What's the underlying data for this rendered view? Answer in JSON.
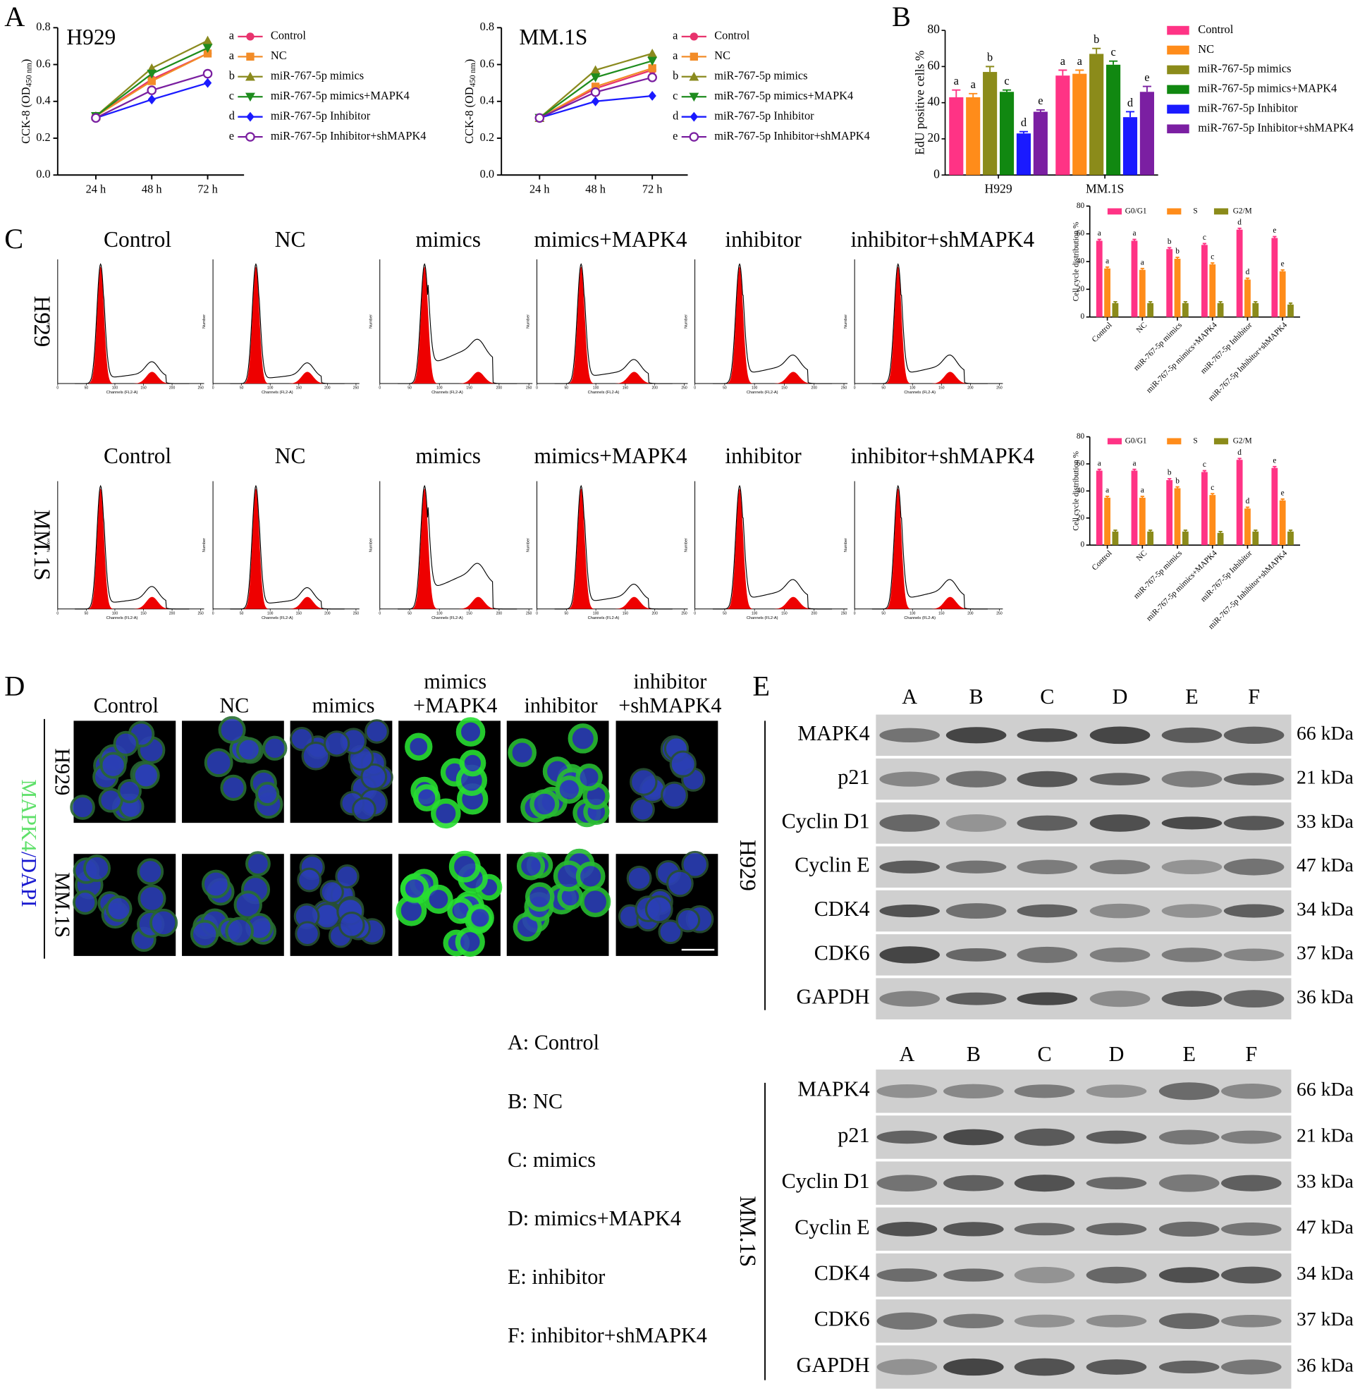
{
  "panel_labels": [
    "A",
    "B",
    "C",
    "D",
    "E"
  ],
  "chart_data": [
    {
      "type": "line",
      "title": "H929",
      "y_label": {
        "text": "CCK-8 (OD",
        "subscript": "450 nm",
        "suffix": ")"
      },
      "categories": [
        "24 h",
        "48 h",
        "72 h"
      ],
      "ylim": [
        0,
        0.8
      ],
      "yticks": [
        {
          "value": 0,
          "label": "0.0"
        },
        0.2,
        0.4,
        0.6,
        0.8
      ],
      "series": [
        {
          "name": "Control",
          "letter": "a",
          "color": "#e8336d",
          "marker": "circle",
          "values": [
            0.32,
            0.52,
            0.66
          ]
        },
        {
          "name": "NC",
          "letter": "a",
          "color": "#f28c28",
          "marker": "square",
          "values": [
            0.32,
            0.51,
            0.66
          ]
        },
        {
          "name": "miR-767-5p mimics",
          "letter": "b",
          "color": "#8a8a1e",
          "marker": "triangle",
          "values": [
            0.32,
            0.58,
            0.73
          ]
        },
        {
          "name": "miR-767-5p mimics+MAPK4",
          "letter": "c",
          "color": "#1e8c1e",
          "marker": "triangle-down",
          "values": [
            0.32,
            0.55,
            0.69
          ]
        },
        {
          "name": "miR-767-5p Inhibitor",
          "letter": "d",
          "color": "#1a1aff",
          "marker": "diamond",
          "values": [
            0.31,
            0.41,
            0.5
          ]
        },
        {
          "name": "miR-767-5p Inhibitor+shMAPK4",
          "letter": "e",
          "color": "#7a1fa0",
          "marker": "open-circle",
          "values": [
            0.31,
            0.46,
            0.55
          ]
        }
      ]
    },
    {
      "type": "line",
      "title": "MM.1S",
      "y_label": {
        "text": "CCK-8 (OD",
        "subscript": "450 nm",
        "suffix": ")"
      },
      "categories": [
        "24 h",
        "48 h",
        "72 h"
      ],
      "ylim": [
        0,
        0.8
      ],
      "yticks": [
        {
          "value": 0,
          "label": "0.0"
        },
        0.2,
        0.4,
        0.6,
        0.8
      ],
      "series": [
        {
          "name": "Control",
          "letter": "a",
          "color": "#e8336d",
          "marker": "circle",
          "values": [
            0.31,
            0.47,
            0.57
          ]
        },
        {
          "name": "NC",
          "letter": "a",
          "color": "#f28c28",
          "marker": "square",
          "values": [
            0.31,
            0.48,
            0.58
          ]
        },
        {
          "name": "miR-767-5p mimics",
          "letter": "b",
          "color": "#8a8a1e",
          "marker": "triangle",
          "values": [
            0.31,
            0.57,
            0.66
          ]
        },
        {
          "name": "miR-767-5p mimics+MAPK4",
          "letter": "c",
          "color": "#1e8c1e",
          "marker": "triangle-down",
          "values": [
            0.31,
            0.53,
            0.62
          ]
        },
        {
          "name": "miR-767-5p Inhibitor",
          "letter": "d",
          "color": "#1a1aff",
          "marker": "diamond",
          "values": [
            0.31,
            0.4,
            0.43
          ]
        },
        {
          "name": "miR-767-5p Inhibitor+shMAPK4",
          "letter": "e",
          "color": "#7a1fa0",
          "marker": "open-circle",
          "values": [
            0.31,
            0.45,
            0.53
          ]
        }
      ]
    },
    {
      "type": "bar",
      "y_label": "EdU positive cells %",
      "categories": [
        "H929",
        "MM.1S"
      ],
      "ylim": [
        0,
        80
      ],
      "yticks": [
        0,
        20,
        40,
        60,
        80
      ],
      "series": [
        {
          "name": "Control",
          "color": "#ff3385",
          "values": [
            43,
            55
          ],
          "errors": [
            4,
            3
          ],
          "letters": [
            "a",
            "a"
          ]
        },
        {
          "name": "NC",
          "color": "#ff8c1a",
          "values": [
            43,
            56
          ],
          "errors": [
            2,
            2
          ],
          "letters": [
            "a",
            "a"
          ]
        },
        {
          "name": "miR-767-5p mimics",
          "color": "#8b8b1a",
          "values": [
            57,
            67
          ],
          "errors": [
            3,
            3
          ],
          "letters": [
            "b",
            "b"
          ]
        },
        {
          "name": "miR-767-5p mimics+MAPK4",
          "color": "#118811",
          "values": [
            46,
            61
          ],
          "errors": [
            1,
            2
          ],
          "letters": [
            "c",
            "c"
          ]
        },
        {
          "name": "miR-767-5p Inhibitor",
          "color": "#1a1aff",
          "values": [
            23,
            32
          ],
          "errors": [
            1,
            3
          ],
          "letters": [
            "d",
            "d"
          ]
        },
        {
          "name": "miR-767-5p Inhibitor+shMAPK4",
          "color": "#7b1fa2",
          "values": [
            35,
            46
          ],
          "errors": [
            1,
            3
          ],
          "letters": [
            "e",
            "e"
          ]
        }
      ]
    },
    {
      "type": "bar",
      "y_label": "Cell cycle distribution %",
      "categories": [
        "Control",
        "NC",
        "miR-767-5p mimics",
        "miR-767-5p mimics+MAPK4",
        "miR-767-5p Inhibitor",
        "miR-767-5p Inhibitor+shMAPK4"
      ],
      "ylim": [
        0,
        80
      ],
      "yticks": [
        0,
        20,
        40,
        60,
        80
      ],
      "series": [
        {
          "name": "G0/G1",
          "color": "#ff3385",
          "values": [
            55,
            55,
            49,
            52,
            63,
            57
          ],
          "errors": [
            1,
            1,
            1,
            1,
            1,
            1
          ],
          "letters": [
            "a",
            "a",
            "b",
            "c",
            "d",
            "e"
          ]
        },
        {
          "name": "S",
          "color": "#ff8c1a",
          "values": [
            35,
            34,
            42,
            38,
            27,
            33
          ],
          "errors": [
            1,
            1,
            1,
            1,
            1,
            1
          ],
          "letters": [
            "a",
            "a",
            "b",
            "c",
            "d",
            "e"
          ]
        },
        {
          "name": "G2/M",
          "color": "#8b8b1a",
          "values": [
            10,
            10,
            10,
            10,
            10,
            9
          ],
          "errors": [
            1,
            1,
            1,
            1,
            1,
            1
          ]
        }
      ]
    },
    {
      "type": "bar",
      "y_label": "Cell cycle distribution %",
      "categories": [
        "Control",
        "NC",
        "miR-767-5p mimics",
        "miR-767-5p mimics+MAPK4",
        "miR-767-5p Inhibitor",
        "miR-767-5p Inhibitor+shMAPK4"
      ],
      "ylim": [
        0,
        80
      ],
      "yticks": [
        0,
        20,
        40,
        60,
        80
      ],
      "series": [
        {
          "name": "G0/G1",
          "color": "#ff3385",
          "values": [
            55,
            55,
            48,
            54,
            63,
            57
          ],
          "errors": [
            1,
            1,
            1,
            1,
            1,
            1
          ],
          "letters": [
            "a",
            "a",
            "b",
            "c",
            "d",
            "e"
          ]
        },
        {
          "name": "S",
          "color": "#ff8c1a",
          "values": [
            35,
            35,
            42,
            37,
            27,
            33
          ],
          "errors": [
            1,
            1,
            1,
            1,
            1,
            1
          ],
          "letters": [
            "a",
            "a",
            "b",
            "c",
            "d",
            "e"
          ]
        },
        {
          "name": "G2/M",
          "color": "#8b8b1a",
          "values": [
            10,
            10,
            10,
            9,
            10,
            10
          ],
          "errors": [
            1,
            1,
            1,
            1,
            1,
            1
          ]
        }
      ]
    }
  ],
  "flow_cytometry": {
    "rows": [
      "H929",
      "MM.1S"
    ],
    "columns": [
      "Control",
      "NC",
      "mimics",
      "mimics+MAPK4",
      "inhibitor",
      "inhibitor+shMAPK4"
    ],
    "x_label": "Channels (FL2-A)",
    "y_label": "Number",
    "xticks": [
      0,
      50,
      100,
      150,
      200,
      250
    ]
  },
  "immunofluorescence": {
    "stain": {
      "marker": "MAPK4",
      "counterstain": "/DAPI"
    },
    "rows": [
      "H929",
      "MM.1S"
    ],
    "columns": [
      [
        "Control"
      ],
      [
        "NC"
      ],
      [
        "mimics"
      ],
      [
        "mimics",
        "+MAPK4"
      ],
      [
        "inhibitor"
      ],
      [
        "inhibitor",
        "+shMAPK4"
      ]
    ]
  },
  "western_blot": {
    "lanes": [
      "A",
      "B",
      "C",
      "D",
      "E",
      "F"
    ],
    "blots": [
      {
        "cell_line": "H929",
        "proteins": [
          {
            "name": "MAPK4",
            "size": "66 kDa"
          },
          {
            "name": "p21",
            "size": "21 kDa"
          },
          {
            "name": "Cyclin D1",
            "size": "33 kDa"
          },
          {
            "name": "Cyclin E",
            "size": "47 kDa"
          },
          {
            "name": "CDK4",
            "size": "34 kDa"
          },
          {
            "name": "CDK6",
            "size": "37 kDa"
          },
          {
            "name": "GAPDH",
            "size": "36 kDa"
          }
        ]
      },
      {
        "cell_line": "MM.1S",
        "proteins": [
          {
            "name": "MAPK4",
            "size": "66 kDa"
          },
          {
            "name": "p21",
            "size": "21 kDa"
          },
          {
            "name": "Cyclin D1",
            "size": "33 kDa"
          },
          {
            "name": "Cyclin E",
            "size": "47 kDa"
          },
          {
            "name": "CDK4",
            "size": "34 kDa"
          },
          {
            "name": "CDK6",
            "size": "37 kDa"
          },
          {
            "name": "GAPDH",
            "size": "36 kDa"
          }
        ]
      }
    ],
    "key": [
      "A: Control",
      "B: NC",
      "C: mimics",
      "D: mimics+MAPK4",
      "E: inhibitor",
      "F: inhibitor+shMAPK4"
    ]
  }
}
